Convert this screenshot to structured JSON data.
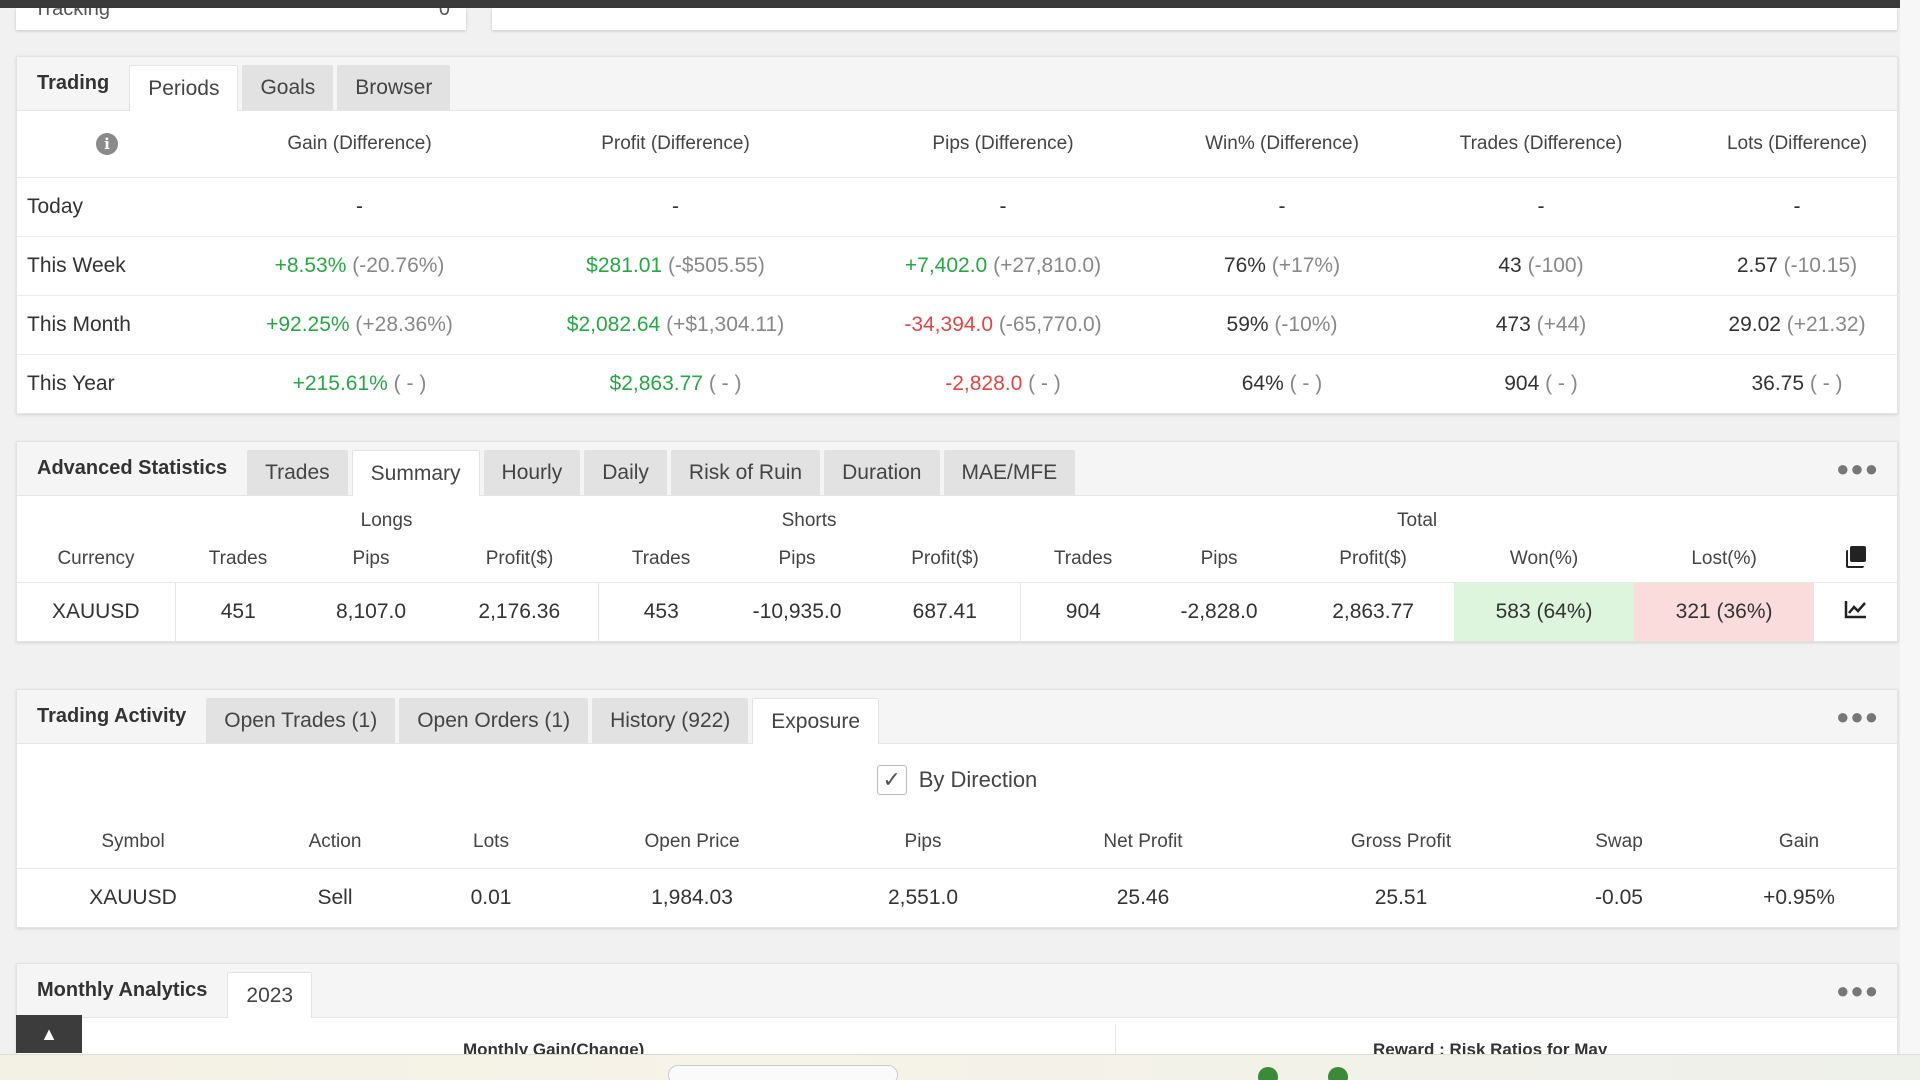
{
  "tracking_stub": {
    "label": "Tracking",
    "value": "0"
  },
  "periods_panel": {
    "tabs": [
      {
        "label": "Trading",
        "active": false,
        "title": true
      },
      {
        "label": "Periods",
        "active": true
      },
      {
        "label": "Goals",
        "active": false
      },
      {
        "label": "Browser",
        "active": false
      }
    ],
    "columns": [
      "Gain (Difference)",
      "Profit (Difference)",
      "Pips (Difference)",
      "Win% (Difference)",
      "Trades (Difference)",
      "Lots (Difference)"
    ],
    "rows": [
      {
        "label": "Today",
        "cells": [
          {
            "v": "-",
            "d": "",
            "c": ""
          },
          {
            "v": "-",
            "d": "",
            "c": ""
          },
          {
            "v": "-",
            "d": "",
            "c": ""
          },
          {
            "v": "-",
            "d": "",
            "c": ""
          },
          {
            "v": "-",
            "d": "",
            "c": ""
          },
          {
            "v": "-",
            "d": "",
            "c": ""
          }
        ]
      },
      {
        "label": "This Week",
        "cells": [
          {
            "v": "+8.53%",
            "d": "(-20.76%)",
            "c": "green"
          },
          {
            "v": "$281.01",
            "d": "(-$505.55)",
            "c": "green"
          },
          {
            "v": "+7,402.0",
            "d": "(+27,810.0)",
            "c": "green"
          },
          {
            "v": "76%",
            "d": "(+17%)",
            "c": ""
          },
          {
            "v": "43",
            "d": "(-100)",
            "c": ""
          },
          {
            "v": "2.57",
            "d": "(-10.15)",
            "c": ""
          }
        ]
      },
      {
        "label": "This Month",
        "cells": [
          {
            "v": "+92.25%",
            "d": "(+28.36%)",
            "c": "green"
          },
          {
            "v": "$2,082.64",
            "d": "(+$1,304.11)",
            "c": "green"
          },
          {
            "v": "-34,394.0",
            "d": "(-65,770.0)",
            "c": "red"
          },
          {
            "v": "59%",
            "d": "(-10%)",
            "c": ""
          },
          {
            "v": "473",
            "d": "(+44)",
            "c": ""
          },
          {
            "v": "29.02",
            "d": "(+21.32)",
            "c": ""
          }
        ]
      },
      {
        "label": "This Year",
        "cells": [
          {
            "v": "+215.61%",
            "d": "( - )",
            "c": "green"
          },
          {
            "v": "$2,863.77",
            "d": "( - )",
            "c": "green"
          },
          {
            "v": "-2,828.0",
            "d": "( - )",
            "c": "red"
          },
          {
            "v": "64%",
            "d": "( - )",
            "c": ""
          },
          {
            "v": "904",
            "d": "( - )",
            "c": ""
          },
          {
            "v": "36.75",
            "d": "( - )",
            "c": ""
          }
        ]
      }
    ]
  },
  "advanced_panel": {
    "title": "Advanced Statistics",
    "tabs": [
      "Trades",
      "Summary",
      "Hourly",
      "Daily",
      "Risk of Ruin",
      "Duration",
      "MAE/MFE"
    ],
    "active_tab": "Summary",
    "groups": {
      "longs": "Longs",
      "shorts": "Shorts",
      "total": "Total"
    },
    "headers": [
      "Currency",
      "Trades",
      "Pips",
      "Profit($)",
      "Trades",
      "Pips",
      "Profit($)",
      "Trades",
      "Pips",
      "Profit($)",
      "Won(%)",
      "Lost(%)"
    ],
    "row": {
      "currency": "XAUUSD",
      "long_trades": "451",
      "long_pips": "8,107.0",
      "long_profit": "2,176.36",
      "short_trades": "453",
      "short_pips": "-10,935.0",
      "short_profit": "687.41",
      "total_trades": "904",
      "total_pips": "-2,828.0",
      "total_profit": "2,863.77",
      "won": "583 (64%)",
      "lost": "321 (36%)"
    }
  },
  "activity_panel": {
    "title": "Trading Activity",
    "tabs": [
      "Open Trades (1)",
      "Open Orders (1)",
      "History (922)",
      "Exposure"
    ],
    "active_tab": "Exposure",
    "by_direction_label": "By Direction",
    "by_direction_checked": true,
    "headers": [
      "Symbol",
      "Action",
      "Lots",
      "Open Price",
      "Pips",
      "Net Profit",
      "Gross Profit",
      "Swap",
      "Gain"
    ],
    "row": {
      "symbol": "XAUUSD",
      "action": "Sell",
      "lots": "0.01",
      "open_price": "1,984.03",
      "pips": "2,551.0",
      "net_profit": "25.46",
      "gross_profit": "25.51",
      "swap": "-0.05",
      "gain": "+0.95%"
    }
  },
  "monthly_panel": {
    "title": "Monthly Analytics",
    "tabs": [
      "2023"
    ],
    "left_subtitle": "Monthly Gain(Change)",
    "right_subtitle": "Reward : Risk Ratios for May"
  },
  "icons": {
    "more": "more-dots-icon",
    "info": "info-icon",
    "copy": "copy-icon",
    "chart": "line-chart-icon",
    "scroll_top": "chevron-up-icon",
    "check": "check-icon"
  },
  "colors": {
    "positive": "#27a844",
    "negative": "#e44545",
    "won_bg": "#dcf5dc",
    "lost_bg": "#fadcdc"
  }
}
